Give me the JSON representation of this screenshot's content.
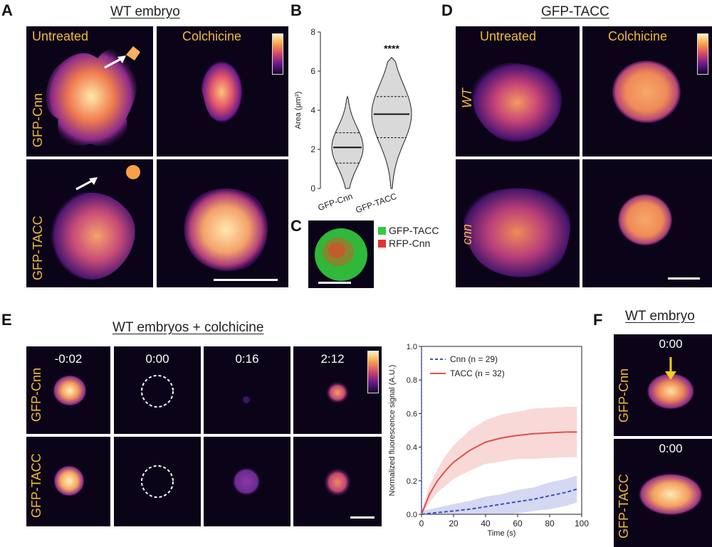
{
  "panels": {
    "A": {
      "letter": "A",
      "title": "WT embryo",
      "col1": "Untreated",
      "col2": "Colchicine",
      "row1": "GFP-Cnn",
      "row2": "GFP-TACC"
    },
    "B": {
      "letter": "B"
    },
    "C": {
      "letter": "C",
      "legend": [
        "GFP-TACC",
        "RFP-Cnn"
      ],
      "colors": [
        "#2ecc40",
        "#e33030"
      ]
    },
    "D": {
      "letter": "D",
      "title": "GFP-TACC",
      "col1": "Untreated",
      "col2": "Colchicine",
      "row1": "WT",
      "row2": "cnn"
    },
    "E": {
      "letter": "E",
      "title": "WT embryos + colchicine",
      "times": [
        "-0:02",
        "0:00",
        "0:16",
        "2:12"
      ],
      "row1": "GFP-Cnn",
      "row2": "GFP-TACC"
    },
    "F": {
      "letter": "F",
      "title": "WT embryo",
      "time1": "0:00",
      "time2": "0:00",
      "row1": "GFP-Cnn",
      "row2": "GFP-TACC"
    }
  },
  "chart_data": [
    {
      "type": "violin",
      "panel": "B",
      "categories": [
        "GFP-Cnn",
        "GFP-TACC"
      ],
      "ylabel": "Area (μm²)",
      "ylim": [
        0,
        8
      ],
      "yticks": [
        0,
        2,
        4,
        6,
        8
      ],
      "medians": [
        2.1,
        3.8
      ],
      "quartiles": [
        [
          1.3,
          2.85
        ],
        [
          2.6,
          4.7
        ]
      ],
      "ranges": [
        [
          0,
          4.7
        ],
        [
          0,
          6.7
        ]
      ],
      "significance": "****"
    },
    {
      "type": "line",
      "panel": "E",
      "xlabel": "Time (s)",
      "ylabel": "Normalized fluorescence signal (A.U.)",
      "xlim": [
        0,
        100
      ],
      "ylim": [
        0,
        1.0
      ],
      "xticks": [
        0,
        20,
        40,
        60,
        80,
        100
      ],
      "yticks": [
        0,
        0.2,
        0.4,
        0.6,
        0.8,
        1.0
      ],
      "series": [
        {
          "name": "Cnn",
          "n_label": "n = 29",
          "color": "#3a4fc4",
          "style": "dashed",
          "x": [
            0,
            10,
            20,
            30,
            40,
            50,
            60,
            70,
            80,
            90,
            97
          ],
          "y": [
            0,
            0.01,
            0.02,
            0.03,
            0.045,
            0.06,
            0.075,
            0.09,
            0.11,
            0.13,
            0.15
          ],
          "band": [
            0.02,
            0.03,
            0.04,
            0.05,
            0.06,
            0.06,
            0.07,
            0.07,
            0.08,
            0.08,
            0.08
          ]
        },
        {
          "name": "TACC",
          "n_label": "n = 32",
          "color": "#e0504a",
          "style": "solid",
          "x": [
            0,
            5,
            10,
            15,
            20,
            30,
            40,
            50,
            60,
            70,
            80,
            90,
            97
          ],
          "y": [
            0,
            0.12,
            0.2,
            0.26,
            0.31,
            0.38,
            0.43,
            0.455,
            0.47,
            0.48,
            0.485,
            0.49,
            0.49
          ],
          "band": [
            0.02,
            0.05,
            0.07,
            0.09,
            0.1,
            0.12,
            0.13,
            0.14,
            0.14,
            0.15,
            0.15,
            0.15,
            0.15
          ]
        }
      ],
      "legend": [
        "Cnn (n = 29)",
        "TACC (n = 32)"
      ]
    }
  ]
}
